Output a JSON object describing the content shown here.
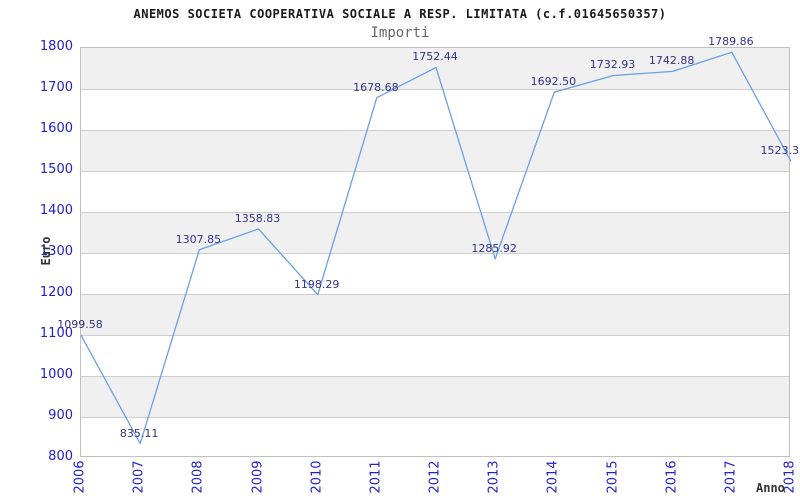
{
  "header": {
    "title": "ANEMOS SOCIETA COOPERATIVA SOCIALE A RESP. LIMITATA (c.f.01645650357)",
    "subtitle": "Importi"
  },
  "colors": {
    "line": "#6ba0e5",
    "band_gray": "#f0f0f0",
    "gridline": "#cccccc",
    "plot_border": "#c0c0c0",
    "tick_label": "#2222cc",
    "point_label": "#333388",
    "title": "#1a1a1a",
    "subtitle": "#666666",
    "axis_title": "#333333"
  },
  "chart_data": {
    "type": "line",
    "title": "ANEMOS SOCIETA COOPERATIVA SOCIALE A RESP. LIMITATA (c.f.01645650357)",
    "subtitle": "Importi",
    "xlabel": "Anno",
    "ylabel": "Euro",
    "x": [
      2006,
      2007,
      2008,
      2009,
      2010,
      2011,
      2012,
      2013,
      2014,
      2015,
      2016,
      2017,
      2018
    ],
    "values": [
      1099.58,
      835.11,
      1307.85,
      1358.83,
      1198.29,
      1678.68,
      1752.44,
      1285.92,
      1692.5,
      1732.93,
      1742.88,
      1789.86,
      1523.3
    ],
    "point_labels": [
      "1099.58",
      "835.11",
      "1307.85",
      "1358.83",
      "1198.29",
      "1678.68",
      "1752.44",
      "1285.92",
      "1692.50",
      "1732.93",
      "1742.88",
      "1789.86",
      "1523.3"
    ],
    "ylim": [
      800,
      1800
    ],
    "ytick_step": 100,
    "grid": "horizontal gridlines with alternating gray/white bands, top band gray",
    "legend": "none"
  }
}
